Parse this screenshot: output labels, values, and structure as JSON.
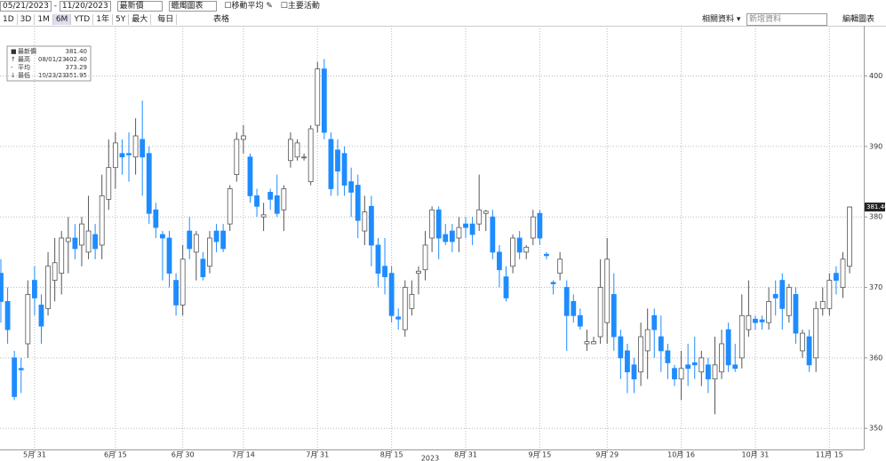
{
  "toolbar": {
    "start_date": "05/21/2023",
    "end_date": "11/20/2023",
    "field": "最新價",
    "chart_style": "蠟燭圖表",
    "moving_average": "移動平均",
    "key_events": "主要活動",
    "ranges": [
      "1D",
      "3D",
      "1M",
      "6M",
      "YTD",
      "1年",
      "5Y",
      "最大"
    ],
    "frequency": "每日",
    "table": "表格",
    "related": "相關資料",
    "add_data": "新增資料",
    "edit_chart": "編輯圖表"
  },
  "chart_data": {
    "type": "candlestick",
    "up_color": "#ffffff",
    "down_color": "#1e8cff",
    "outline_color": "#555555",
    "grid": true,
    "year_label": "2023",
    "summary": [
      {
        "label": "最新價",
        "value": "381.40"
      },
      {
        "label": "最高",
        "date": "08/01/23",
        "value": "402.40"
      },
      {
        "label": "平均",
        "value": "373.29"
      },
      {
        "label": "最低",
        "date": "10/23/23",
        "value": "351.95"
      }
    ],
    "ylim": [
      347,
      407
    ],
    "yticks": [
      350,
      360,
      370,
      380,
      390,
      400
    ],
    "categories": [
      null,
      null,
      null,
      null,
      null,
      "5月 31",
      null,
      null,
      null,
      null,
      null,
      null,
      null,
      null,
      null,
      null,
      null,
      "6月 15",
      null,
      null,
      null,
      null,
      null,
      null,
      null,
      null,
      null,
      "6月 30",
      null,
      null,
      null,
      null,
      null,
      null,
      null,
      null,
      "7月 14",
      null,
      null,
      null,
      null,
      null,
      null,
      null,
      null,
      null,
      null,
      "7月 31",
      null,
      null,
      null,
      null,
      null,
      null,
      null,
      null,
      null,
      null,
      "8月 15",
      null,
      null,
      null,
      null,
      null,
      null,
      null,
      null,
      null,
      null,
      "8月 31",
      null,
      null,
      null,
      null,
      null,
      null,
      null,
      null,
      null,
      null,
      "9月 15",
      null,
      null,
      null,
      null,
      null,
      null,
      null,
      null,
      null,
      "9月 29",
      null,
      null,
      null,
      null,
      null,
      null,
      null,
      null,
      null,
      null,
      "10月 16",
      null,
      null,
      null,
      null,
      null,
      null,
      null,
      null,
      null,
      null,
      "10月 31",
      null,
      null,
      null,
      null,
      null,
      null,
      null,
      null,
      null,
      null,
      "11月 15",
      null,
      null,
      null
    ],
    "open": [
      372,
      368,
      360,
      358.5,
      362,
      371,
      367.5,
      367,
      371,
      372,
      376.5,
      377,
      376,
      375,
      377.5,
      376,
      382.5,
      387,
      389,
      389,
      388.5,
      391,
      389,
      381,
      377.5,
      377,
      371,
      367.5,
      378,
      375,
      374,
      373,
      378,
      378,
      379,
      386,
      391,
      388.5,
      383,
      380,
      383.5,
      383,
      381,
      388,
      388.5,
      388.4,
      385,
      393,
      401,
      391,
      389.5,
      389,
      385,
      384.5,
      378,
      381.5,
      376,
      373,
      372,
      365.8,
      364,
      367,
      372,
      372.5,
      377,
      381,
      377.5,
      378,
      377,
      379,
      379,
      379,
      380.5,
      380,
      375,
      371.5,
      373,
      377,
      375,
      377,
      380.5,
      374.7,
      370.7,
      372,
      370,
      368,
      366,
      362,
      362,
      363,
      365,
      369,
      363,
      361,
      359,
      358,
      361,
      366,
      363,
      361,
      358.5,
      357,
      359,
      359.3,
      358,
      359,
      357,
      358,
      364,
      359,
      360,
      364,
      365.5,
      365.4,
      365,
      369,
      371,
      366,
      369,
      361,
      363,
      360,
      367,
      367,
      372,
      370,
      373
    ],
    "high": [
      374,
      370,
      361,
      360,
      371,
      373,
      369,
      375,
      377,
      378,
      380,
      379,
      380,
      383,
      379,
      386,
      391,
      392,
      391,
      392,
      394,
      396.5,
      390,
      382,
      378,
      378,
      372,
      376,
      380,
      378,
      375,
      378,
      379,
      379,
      384.5,
      392,
      393,
      389,
      384,
      382,
      384,
      386,
      384.5,
      392,
      391,
      389,
      393,
      402,
      402.4,
      392,
      391,
      390,
      387,
      386,
      383,
      383,
      377,
      377,
      373,
      367,
      371,
      371,
      373,
      378,
      381.5,
      381.5,
      379,
      379,
      380,
      380,
      380,
      386,
      381,
      381,
      376,
      373,
      377.5,
      378,
      376,
      381,
      381,
      375,
      371,
      375,
      371,
      369,
      367,
      364,
      363,
      374,
      377,
      372,
      364,
      362,
      360,
      365,
      367,
      367,
      366,
      362,
      359,
      361,
      362,
      363,
      361,
      360,
      363,
      364,
      365,
      362,
      369,
      371,
      366,
      366,
      370,
      371,
      372,
      370.5,
      370,
      364,
      364,
      368,
      370,
      372,
      373,
      375,
      381.5
    ],
    "low": [
      365,
      362,
      354,
      355,
      360,
      366,
      362,
      366,
      368,
      369,
      372,
      374,
      373,
      374,
      374,
      374,
      381,
      384,
      386,
      385,
      386,
      383,
      379,
      377,
      371,
      370,
      366,
      366,
      374,
      371,
      371,
      372,
      375,
      375,
      378,
      385,
      389,
      382,
      380,
      378,
      381,
      380,
      378,
      387,
      388,
      388,
      384.5,
      392,
      391,
      383,
      383,
      383,
      380,
      377,
      376,
      373,
      370,
      369,
      365,
      364,
      363,
      366,
      369,
      371,
      375,
      374,
      376,
      375,
      375,
      377,
      376,
      378,
      378,
      374,
      370,
      368,
      372,
      374,
      374,
      376,
      376,
      374,
      369,
      371,
      361,
      365,
      364,
      361,
      362,
      362,
      362,
      361,
      357,
      355,
      355,
      356,
      357,
      360,
      358,
      357,
      356,
      354,
      356,
      357,
      356,
      355,
      352,
      357,
      358,
      358,
      358.5,
      363,
      364,
      364,
      364,
      366,
      364,
      365,
      362,
      360,
      358,
      358,
      366,
      366,
      369,
      368.5,
      372
    ],
    "close": [
      368,
      364,
      354.5,
      358.3,
      369,
      368.5,
      364.5,
      373,
      373.5,
      377,
      377,
      375.5,
      379,
      378,
      375.5,
      383,
      387,
      390.5,
      388.5,
      388.8,
      391.5,
      388.5,
      380.5,
      378.5,
      377,
      372,
      367.5,
      374,
      375.5,
      377.5,
      371.5,
      377,
      376.5,
      375.5,
      384,
      391,
      391.5,
      383,
      381.5,
      380.3,
      382.5,
      380.5,
      384,
      391,
      390.5,
      388.5,
      392.5,
      401,
      392,
      384,
      386.5,
      384.5,
      383.5,
      379.5,
      380.7,
      376,
      372,
      371.5,
      366,
      365.5,
      370,
      369,
      372.3,
      376,
      381,
      377,
      376.5,
      376.5,
      378.5,
      378.5,
      377.5,
      381,
      380.8,
      375,
      372.5,
      368.5,
      377,
      375,
      375.7,
      380,
      377,
      374.5,
      370.5,
      374,
      366,
      366,
      364.5,
      362.3,
      362.3,
      370,
      374,
      363,
      360,
      358,
      357,
      363,
      364,
      364,
      361,
      359.3,
      357,
      358.5,
      358.5,
      359,
      360,
      357,
      359,
      362,
      359,
      358.5,
      366,
      366,
      365,
      365.1,
      368,
      368.5,
      367,
      370,
      363.5,
      363.5,
      359,
      367,
      368,
      371,
      371,
      374,
      381.4
    ]
  }
}
